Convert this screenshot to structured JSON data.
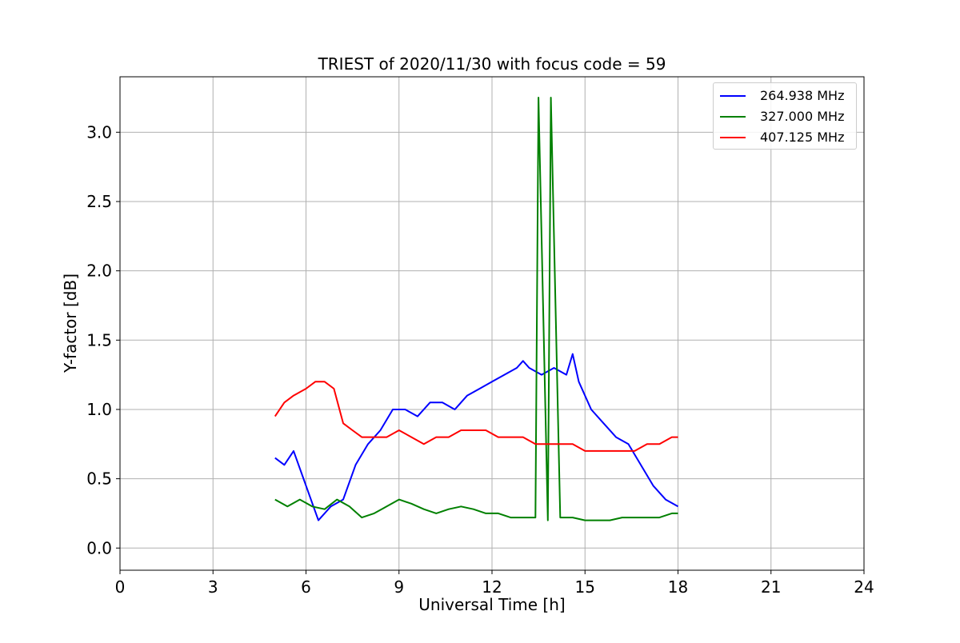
{
  "chart_data": {
    "type": "line",
    "title": "TRIEST of 2020/11/30 with focus code = 59",
    "xlabel": "Universal Time [h]",
    "ylabel": "Y-factor [dB]",
    "xlim": [
      0,
      24
    ],
    "ylim": [
      -0.16,
      3.4
    ],
    "xticks": [
      0,
      3,
      6,
      9,
      12,
      15,
      18,
      21,
      24
    ],
    "xtick_labels": [
      "0",
      "3",
      "6",
      "9",
      "12",
      "15",
      "18",
      "21",
      "24"
    ],
    "yticks": [
      0.0,
      0.5,
      1.0,
      1.5,
      2.0,
      2.5,
      3.0
    ],
    "ytick_labels": [
      "0.0",
      "0.5",
      "1.0",
      "1.5",
      "2.0",
      "2.5",
      "3.0"
    ],
    "grid": true,
    "legend_position": "top-right",
    "series": [
      {
        "name": "264.938 MHz",
        "color": "#0000ff",
        "x": [
          5.0,
          5.3,
          5.6,
          6.0,
          6.4,
          6.8,
          7.2,
          7.6,
          8.0,
          8.4,
          8.8,
          9.2,
          9.6,
          10.0,
          10.4,
          10.8,
          11.2,
          11.6,
          12.0,
          12.4,
          12.8,
          13.0,
          13.2,
          13.6,
          14.0,
          14.4,
          14.6,
          14.8,
          15.2,
          15.6,
          16.0,
          16.4,
          16.8,
          17.2,
          17.6,
          18.0
        ],
        "y": [
          0.65,
          0.6,
          0.7,
          0.45,
          0.2,
          0.3,
          0.35,
          0.6,
          0.75,
          0.85,
          1.0,
          1.0,
          0.95,
          1.05,
          1.05,
          1.0,
          1.1,
          1.15,
          1.2,
          1.25,
          1.3,
          1.35,
          1.3,
          1.25,
          1.3,
          1.25,
          1.4,
          1.2,
          1.0,
          0.9,
          0.8,
          0.75,
          0.6,
          0.45,
          0.35,
          0.3
        ]
      },
      {
        "name": "327.000 MHz",
        "color": "#008000",
        "x": [
          5.0,
          5.4,
          5.8,
          6.2,
          6.6,
          7.0,
          7.4,
          7.8,
          8.2,
          8.6,
          9.0,
          9.4,
          9.8,
          10.2,
          10.6,
          11.0,
          11.4,
          11.8,
          12.2,
          12.6,
          13.0,
          13.4,
          13.5,
          13.8,
          13.9,
          14.2,
          14.6,
          15.0,
          15.4,
          15.8,
          16.2,
          16.6,
          17.0,
          17.4,
          17.8,
          18.0
        ],
        "y": [
          0.35,
          0.3,
          0.35,
          0.3,
          0.28,
          0.35,
          0.3,
          0.22,
          0.25,
          0.3,
          0.35,
          0.32,
          0.28,
          0.25,
          0.28,
          0.3,
          0.28,
          0.25,
          0.25,
          0.22,
          0.22,
          0.22,
          3.25,
          0.2,
          3.25,
          0.22,
          0.22,
          0.2,
          0.2,
          0.2,
          0.22,
          0.22,
          0.22,
          0.22,
          0.25,
          0.25
        ]
      },
      {
        "name": "407.125 MHz",
        "color": "#ff0000",
        "x": [
          5.0,
          5.3,
          5.6,
          6.0,
          6.3,
          6.6,
          6.9,
          7.2,
          7.5,
          7.8,
          8.2,
          8.6,
          9.0,
          9.4,
          9.8,
          10.2,
          10.6,
          11.0,
          11.4,
          11.8,
          12.2,
          12.6,
          13.0,
          13.4,
          13.8,
          14.2,
          14.6,
          15.0,
          15.4,
          15.8,
          16.2,
          16.6,
          17.0,
          17.4,
          17.8,
          18.0
        ],
        "y": [
          0.95,
          1.05,
          1.1,
          1.15,
          1.2,
          1.2,
          1.15,
          0.9,
          0.85,
          0.8,
          0.8,
          0.8,
          0.85,
          0.8,
          0.75,
          0.8,
          0.8,
          0.85,
          0.85,
          0.85,
          0.8,
          0.8,
          0.8,
          0.75,
          0.75,
          0.75,
          0.75,
          0.7,
          0.7,
          0.7,
          0.7,
          0.7,
          0.75,
          0.75,
          0.8,
          0.8
        ]
      }
    ]
  }
}
